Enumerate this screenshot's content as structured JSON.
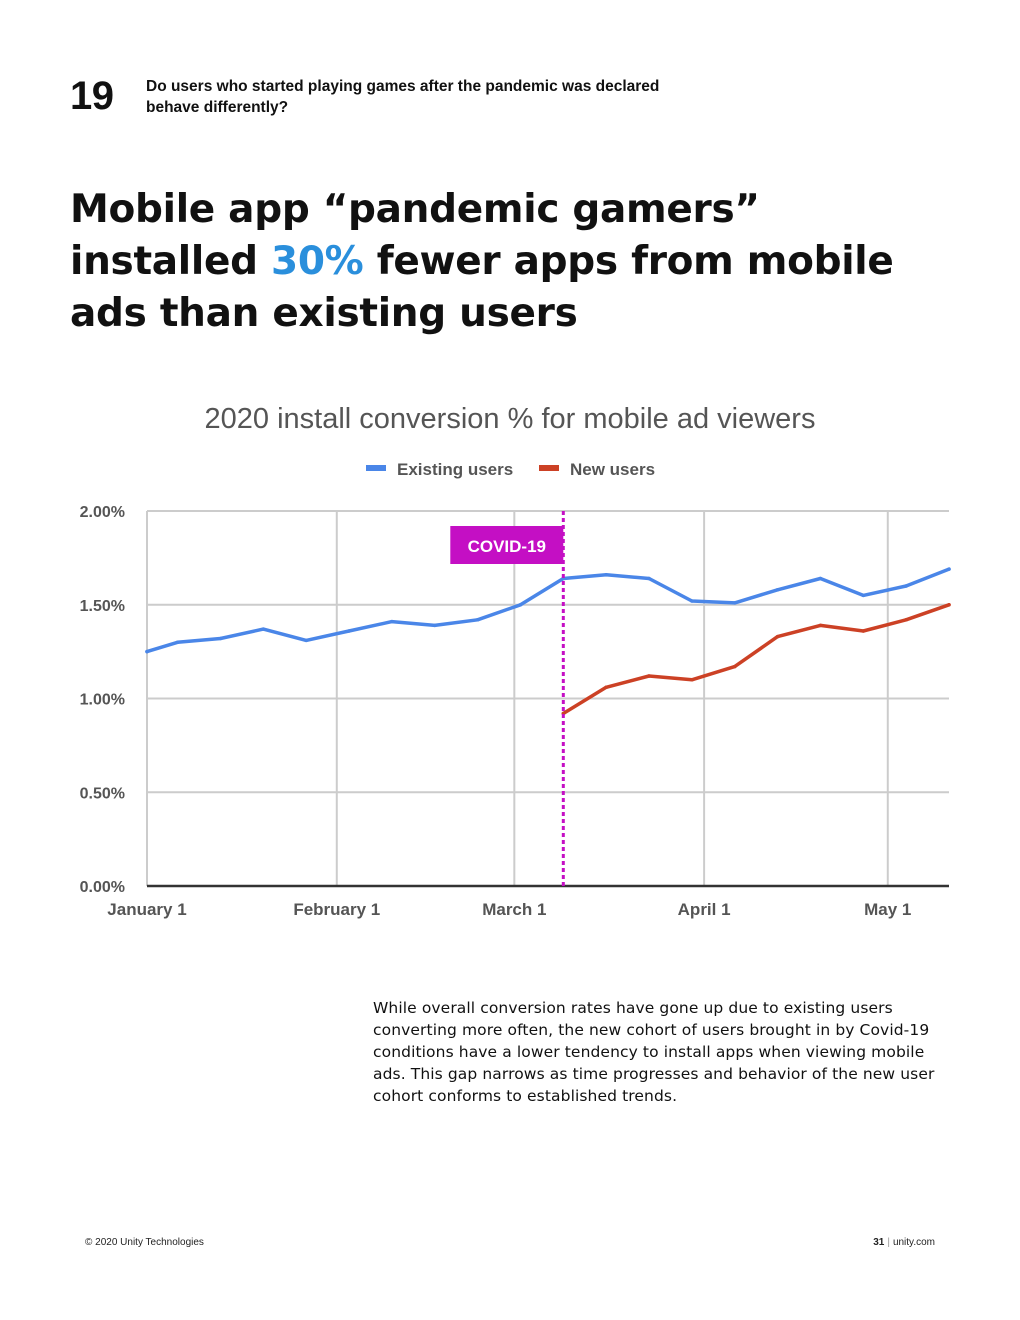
{
  "header": {
    "section_number": "19",
    "section_question": "Do users who started playing games after the pandemic was declared behave differently?"
  },
  "headline": {
    "part1": "Mobile app “pandemic gamers” installed ",
    "highlight": "30%",
    "part2": " fewer apps from mobile ads than existing users",
    "highlight_color": "#2a8fdc"
  },
  "chart_data": {
    "type": "line",
    "title": "2020 install conversion % for mobile ad viewers",
    "xlabel": "",
    "ylabel": "",
    "x_range": [
      "2020-01-01",
      "2020-05-11"
    ],
    "ylim": [
      0,
      2.0
    ],
    "y_ticks": [
      "0.00%",
      "0.50%",
      "1.00%",
      "1.50%",
      "2.00%"
    ],
    "x_ticks": [
      {
        "date": "2020-01-01",
        "label": "January 1"
      },
      {
        "date": "2020-02-01",
        "label": "February 1"
      },
      {
        "date": "2020-03-01",
        "label": "March 1"
      },
      {
        "date": "2020-04-01",
        "label": "April 1"
      },
      {
        "date": "2020-05-01",
        "label": "May 1"
      }
    ],
    "grid": true,
    "legend_position": "top-center",
    "annotation": {
      "label": "COVID-19",
      "date": "2020-03-09",
      "color": "#c40fc4"
    },
    "series": [
      {
        "name": "Existing users",
        "color": "#4a86e8",
        "x": [
          "2020-01-01",
          "2020-01-06",
          "2020-01-13",
          "2020-01-20",
          "2020-01-27",
          "2020-02-03",
          "2020-02-10",
          "2020-02-17",
          "2020-02-24",
          "2020-03-02",
          "2020-03-09",
          "2020-03-16",
          "2020-03-23",
          "2020-03-30",
          "2020-04-06",
          "2020-04-13",
          "2020-04-20",
          "2020-04-27",
          "2020-05-04",
          "2020-05-11"
        ],
        "values": [
          1.25,
          1.3,
          1.32,
          1.37,
          1.31,
          1.36,
          1.41,
          1.39,
          1.42,
          1.5,
          1.64,
          1.66,
          1.64,
          1.52,
          1.51,
          1.58,
          1.64,
          1.55,
          1.6,
          1.69
        ]
      },
      {
        "name": "New users",
        "color": "#cc4125",
        "x": [
          "2020-03-09",
          "2020-03-16",
          "2020-03-23",
          "2020-03-30",
          "2020-04-06",
          "2020-04-13",
          "2020-04-20",
          "2020-04-27",
          "2020-05-04",
          "2020-05-11"
        ],
        "values": [
          0.92,
          1.06,
          1.12,
          1.1,
          1.17,
          1.33,
          1.39,
          1.36,
          1.42,
          1.5
        ]
      }
    ]
  },
  "body_text": "While overall conversion rates have gone up due to existing users converting more often, the new cohort of users brought in by Covid-19 conditions have a lower tendency to install apps when viewing mobile ads. This gap narrows as time progresses and behavior of the new user cohort conforms to established trends.",
  "footer": {
    "copyright": "© 2020 Unity Technologies",
    "page_number": "31",
    "separator": "|",
    "site": "unity.com"
  }
}
